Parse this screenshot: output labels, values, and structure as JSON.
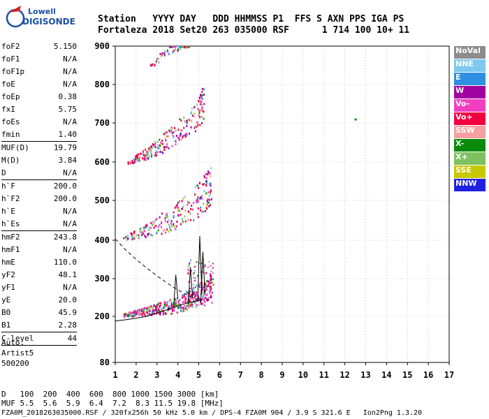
{
  "logo": {
    "line1": "Lowell",
    "line2": "DIGISONDE"
  },
  "header": {
    "labels": "Station   YYYY DAY   DDD HHMMSS P1  FFS S AXN PPS IGA PS",
    "values": "Fortaleza 2018 Set20 263 035000 RSF      1 714 100 10+ 11"
  },
  "params": {
    "group1": [
      {
        "k": "foF2",
        "v": "5.150"
      },
      {
        "k": "foF1",
        "v": "N/A"
      },
      {
        "k": "foF1p",
        "v": "N/A"
      },
      {
        "k": "foE",
        "v": "N/A"
      },
      {
        "k": "foEp",
        "v": "0.38"
      },
      {
        "k": "fxI",
        "v": "5.75"
      },
      {
        "k": "foEs",
        "v": "N/A"
      },
      {
        "k": "fmin",
        "v": "1.40"
      }
    ],
    "group2": [
      {
        "k": "MUF(D)",
        "v": "19.79"
      },
      {
        "k": "M(D)",
        "v": "3.84"
      },
      {
        "k": "D",
        "v": "N/A"
      }
    ],
    "group3": [
      {
        "k": "h`F",
        "v": "200.0"
      },
      {
        "k": "h`F2",
        "v": "200.0"
      },
      {
        "k": "h`E",
        "v": "N/A"
      },
      {
        "k": "h`Es",
        "v": "N/A"
      }
    ],
    "group4": [
      {
        "k": "hmF2",
        "v": "243.8"
      },
      {
        "k": "hmF1",
        "v": "N/A"
      },
      {
        "k": "hmE",
        "v": "110.0"
      },
      {
        "k": "yF2",
        "v": "48.1"
      },
      {
        "k": "yF1",
        "v": "N/A"
      },
      {
        "k": "yE",
        "v": "20.0"
      },
      {
        "k": "B0",
        "v": "45.9"
      },
      {
        "k": "B1",
        "v": "2.28"
      }
    ],
    "group5": [
      {
        "k": "C-level",
        "v": "44"
      }
    ]
  },
  "auto": {
    "line1": "Auto:",
    "line2": "Artist5",
    "line3": "500200"
  },
  "legend": [
    {
      "label": "NoVal",
      "color": "#8c8c8c"
    },
    {
      "label": "NNE",
      "color": "#7ec8f0"
    },
    {
      "label": "E",
      "color": "#2f8fe0"
    },
    {
      "label": "W",
      "color": "#a000a0"
    },
    {
      "label": "Vo-",
      "color": "#f040c0"
    },
    {
      "label": "Vo+",
      "color": "#f00040"
    },
    {
      "label": "SSW",
      "color": "#f4a0a0"
    },
    {
      "label": "X-",
      "color": "#0a8a0a"
    },
    {
      "label": "X+",
      "color": "#80c060"
    },
    {
      "label": "SSE",
      "color": "#c8c800"
    },
    {
      "label": "NNW",
      "color": "#2020e0"
    }
  ],
  "chart_data": {
    "type": "scatter",
    "title": "",
    "xlabel": "",
    "ylabel": "",
    "xlim": [
      1,
      17
    ],
    "ylim": [
      80,
      900
    ],
    "xticks": [
      1,
      2,
      3,
      4,
      5,
      6,
      7,
      8,
      9,
      10,
      11,
      12,
      13,
      14,
      15,
      16,
      17
    ],
    "yticks": [
      80,
      200,
      300,
      400,
      500,
      600,
      700,
      800,
      900
    ],
    "grid": "dotted",
    "traces": [
      {
        "name": "1st hop",
        "x": [
          1.4,
          1.8,
          2.2,
          2.6,
          3.0,
          3.4,
          3.8,
          4.2,
          4.6,
          5.0,
          5.3,
          5.6
        ],
        "y": [
          202,
          204,
          206,
          208,
          210,
          213,
          216,
          222,
          230,
          240,
          250,
          262
        ]
      },
      {
        "name": "2nd hop",
        "x": [
          1.4,
          1.9,
          2.4,
          2.9,
          3.4,
          3.9,
          4.4,
          4.9,
          5.3,
          5.6
        ],
        "y": [
          402,
          408,
          414,
          420,
          430,
          440,
          455,
          470,
          490,
          510
        ]
      },
      {
        "name": "3rd hop",
        "x": [
          1.6,
          2.1,
          2.6,
          3.1,
          3.6,
          4.1,
          4.6,
          5.0,
          5.2
        ],
        "y": [
          598,
          606,
          616,
          628,
          645,
          662,
          680,
          700,
          720
        ]
      },
      {
        "name": "4th hop",
        "x": [
          2.6,
          3.0,
          3.4,
          3.8,
          4.2,
          4.5
        ],
        "y": [
          845,
          860,
          875,
          890,
          900,
          905
        ]
      }
    ],
    "profile": {
      "x": [
        1.0,
        1.5,
        2.0,
        2.5,
        3.0,
        3.5,
        4.0,
        4.5,
        5.0,
        5.15
      ],
      "y": [
        188,
        191,
        195,
        200,
        209,
        218,
        228,
        236,
        242,
        244
      ]
    },
    "dashed_profile": {
      "x": [
        1.0,
        1.5,
        2.0,
        2.5,
        3.0,
        3.5,
        4.0,
        4.5,
        5.0
      ],
      "y": [
        403,
        375,
        350,
        328,
        307,
        288,
        270,
        255,
        244
      ]
    },
    "spikes": [
      {
        "x": 5.05,
        "y": [
          240,
          410
        ]
      },
      {
        "x": 5.2,
        "y": [
          235,
          370
        ]
      },
      {
        "x": 4.6,
        "y": [
          230,
          330
        ]
      },
      {
        "x": 3.9,
        "y": [
          225,
          310
        ]
      }
    ],
    "outlier": {
      "x": 12.5,
      "y": 710
    }
  },
  "muf": {
    "d_label": "D",
    "d_values": "   100  200  400  600  800 1000 1500 3000 [km]",
    "muf_label": "MUF",
    "muf_values": " 5.5  5.6  5.9  6.4  7.2  8.3 11.5 19.8 [MHz]"
  },
  "footer": "FZA0M_2018263035000.RSF / 320fx256h 50 kHz 5.0 km / DPS-4 FZA0M 904 / 3.9 S 321.6 E   Ion2Png 1.3.20"
}
